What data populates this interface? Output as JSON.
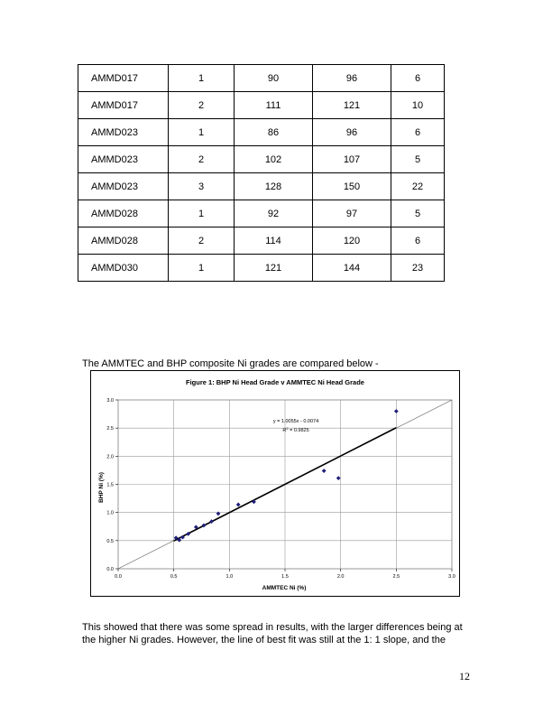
{
  "table": {
    "rows": [
      [
        "AMMD017",
        "1",
        "90",
        "96",
        "6"
      ],
      [
        "AMMD017",
        "2",
        "111",
        "121",
        "10"
      ],
      [
        "AMMD023",
        "1",
        "86",
        "96",
        "6"
      ],
      [
        "AMMD023",
        "2",
        "102",
        "107",
        "5"
      ],
      [
        "AMMD023",
        "3",
        "128",
        "150",
        "22"
      ],
      [
        "AMMD028",
        "1",
        "92",
        "97",
        "5"
      ],
      [
        "AMMD028",
        "2",
        "114",
        "120",
        "6"
      ],
      [
        "AMMD030",
        "1",
        "121",
        "144",
        "23"
      ]
    ]
  },
  "caption": "The AMMTEC and BHP composite Ni grades are compared  below -",
  "chart_data": {
    "type": "scatter",
    "title": "Figure 1: BHP Ni Head Grade v AMMTEC Ni Head Grade",
    "xlabel": "AMMTEC Ni (%)",
    "ylabel": "BHP Ni (%)",
    "xlim": [
      0,
      3
    ],
    "ylim": [
      0,
      3
    ],
    "xticks": [
      "0.0",
      "0.5",
      "1.0",
      "1.5",
      "2.0",
      "2.5",
      "3.0"
    ],
    "yticks": [
      "0.0",
      "0.5",
      "1.0",
      "1.5",
      "2.0",
      "2.5",
      "3.0"
    ],
    "grid": true,
    "marker_color": "#1f1f7a",
    "points": [
      {
        "x": 0.52,
        "y": 0.55
      },
      {
        "x": 0.55,
        "y": 0.51
      },
      {
        "x": 0.58,
        "y": 0.56
      },
      {
        "x": 0.63,
        "y": 0.62
      },
      {
        "x": 0.7,
        "y": 0.74
      },
      {
        "x": 0.77,
        "y": 0.77
      },
      {
        "x": 0.84,
        "y": 0.84
      },
      {
        "x": 0.9,
        "y": 0.98
      },
      {
        "x": 1.08,
        "y": 1.14
      },
      {
        "x": 1.22,
        "y": 1.19
      },
      {
        "x": 1.85,
        "y": 1.74
      },
      {
        "x": 1.98,
        "y": 1.61
      },
      {
        "x": 2.5,
        "y": 2.8
      }
    ],
    "fit_line": {
      "slope": 1.0055,
      "intercept": -0.0074,
      "x_range": [
        0.5,
        2.5
      ]
    },
    "reference_line": {
      "slope": 1,
      "intercept": 0,
      "x_range": [
        0,
        3
      ]
    },
    "equation_text": "y = 1.0055x - 0.0074",
    "r2_text": "R",
    "r2_sup": "2",
    "r2_value_text": " = 0.9825"
  },
  "body_text": "This showed that there was some spread in results, with the larger differences being at the higher Ni grades. However, the line of best fit was still at the 1: 1 slope, and the",
  "page_number": "12"
}
